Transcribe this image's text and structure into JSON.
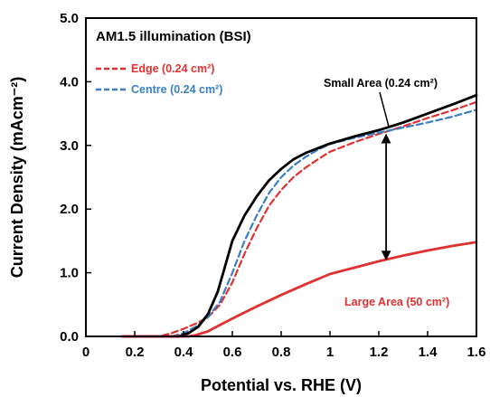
{
  "chart_data": {
    "type": "line",
    "title": "AM1.5 illumination (BSI)",
    "xlabel": "Potential vs. RHE (V)",
    "ylabel": "Current Density (mAcm⁻²)",
    "xlim": [
      0,
      1.6
    ],
    "ylim": [
      0,
      5.0
    ],
    "x_ticks": [
      "0",
      "0.2",
      "0.4",
      "0.6",
      "0.8",
      "1",
      "1.2",
      "1.4",
      "1.6"
    ],
    "y_ticks": [
      "0.0",
      "1.0",
      "2.0",
      "3.0",
      "4.0",
      "5.0"
    ],
    "grid": false,
    "legend_position": "top-left",
    "series": [
      {
        "name": "Edge (0.24 cm²)",
        "color": "#e03030",
        "dash": true,
        "x": [
          0.15,
          0.3,
          0.35,
          0.4,
          0.45,
          0.5,
          0.55,
          0.6,
          0.65,
          0.7,
          0.75,
          0.8,
          0.85,
          0.9,
          0.95,
          1.0,
          1.1,
          1.2,
          1.3,
          1.4,
          1.5,
          1.6
        ],
        "values": [
          0.0,
          0.0,
          0.05,
          0.12,
          0.2,
          0.3,
          0.5,
          0.85,
          1.3,
          1.7,
          2.05,
          2.3,
          2.5,
          2.65,
          2.78,
          2.9,
          3.05,
          3.18,
          3.3,
          3.43,
          3.55,
          3.68
        ]
      },
      {
        "name": "Centre (0.24 cm²)",
        "color": "#3a7fc4",
        "dash": true,
        "x": [
          0.15,
          0.35,
          0.4,
          0.45,
          0.5,
          0.55,
          0.6,
          0.65,
          0.7,
          0.75,
          0.8,
          0.85,
          0.9,
          0.95,
          1.0,
          1.1,
          1.2,
          1.3,
          1.4,
          1.5,
          1.6
        ],
        "values": [
          0.0,
          0.0,
          0.05,
          0.15,
          0.3,
          0.55,
          1.0,
          1.5,
          1.9,
          2.25,
          2.5,
          2.68,
          2.82,
          2.93,
          3.02,
          3.12,
          3.2,
          3.28,
          3.36,
          3.45,
          3.56
        ]
      },
      {
        "name": "Small Area (0.24 cm²)",
        "color": "#000000",
        "dash": false,
        "x": [
          0.15,
          0.38,
          0.42,
          0.46,
          0.5,
          0.54,
          0.57,
          0.6,
          0.65,
          0.7,
          0.75,
          0.8,
          0.85,
          0.9,
          1.0,
          1.1,
          1.2,
          1.3,
          1.4,
          1.5,
          1.6
        ],
        "values": [
          0.0,
          0.0,
          0.05,
          0.15,
          0.35,
          0.7,
          1.1,
          1.5,
          1.9,
          2.2,
          2.45,
          2.63,
          2.78,
          2.88,
          3.03,
          3.14,
          3.24,
          3.36,
          3.5,
          3.64,
          3.79
        ]
      },
      {
        "name": "Large Area (50 cm²)",
        "color": "#e03030",
        "dash": false,
        "x": [
          0.15,
          0.42,
          0.45,
          0.5,
          0.55,
          0.6,
          0.7,
          0.8,
          0.9,
          1.0,
          1.1,
          1.2,
          1.3,
          1.4,
          1.5,
          1.6
        ],
        "values": [
          0.0,
          0.0,
          0.02,
          0.08,
          0.18,
          0.28,
          0.47,
          0.65,
          0.82,
          0.98,
          1.08,
          1.18,
          1.27,
          1.35,
          1.42,
          1.48
        ]
      }
    ],
    "annotations": [
      {
        "text": "Small Area (0.24 cm²)",
        "color": "#000000"
      },
      {
        "text": "Large Area (50 cm²)",
        "color": "#e03030"
      }
    ],
    "arrow": {
      "x": 1.23,
      "y_from": 1.18,
      "y_to": 3.2
    }
  }
}
